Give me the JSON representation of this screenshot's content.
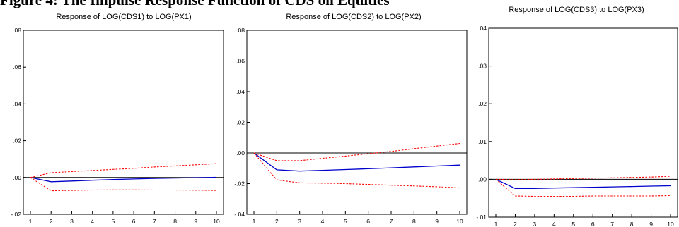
{
  "heading": "Figure 4: The Impulse Response Function of CDS on Equities",
  "chart_data": [
    {
      "type": "line",
      "title": "Response of LOG(CDS1) to LOG(PX1)",
      "x": [
        1,
        2,
        3,
        4,
        5,
        6,
        7,
        8,
        9,
        10
      ],
      "ylim": [
        -0.02,
        0.08
      ],
      "yticks": [
        "-.02",
        ".00",
        ".02",
        ".04",
        ".06",
        ".08"
      ],
      "ytick_values": [
        -0.02,
        0.0,
        0.02,
        0.04,
        0.06,
        0.08
      ],
      "series": [
        {
          "values": [
            0.0,
            -0.0023,
            -0.0019,
            -0.0015,
            -0.0011,
            -0.0008,
            -0.0005,
            -0.0003,
            -0.0001,
            0.0001
          ],
          "color": "#0000cc",
          "style": "solid"
        },
        {
          "values": [
            0.0,
            0.0026,
            0.0032,
            0.0038,
            0.0044,
            0.005,
            0.0057,
            0.0063,
            0.0069,
            0.0075
          ],
          "color": "#ff0000",
          "style": "dashed"
        },
        {
          "values": [
            0.0,
            -0.0072,
            -0.007,
            -0.0068,
            -0.0067,
            -0.0067,
            -0.0068,
            -0.0068,
            -0.0069,
            -0.007
          ],
          "color": "#ff0000",
          "style": "dashed"
        }
      ]
    },
    {
      "type": "line",
      "title": "Response of LOG(CDS2) to LOG(PX2)",
      "x": [
        1,
        2,
        3,
        4,
        5,
        6,
        7,
        8,
        9,
        10
      ],
      "ylim": [
        -0.04,
        0.08
      ],
      "yticks": [
        "-.04",
        "-.02",
        ".00",
        ".02",
        ".04",
        ".06",
        ".08"
      ],
      "ytick_values": [
        -0.04,
        -0.02,
        0.0,
        0.02,
        0.04,
        0.06,
        0.08
      ],
      "series": [
        {
          "values": [
            0.0,
            -0.011,
            -0.0118,
            -0.0113,
            -0.0108,
            -0.0103,
            -0.0097,
            -0.0091,
            -0.0085,
            -0.0079
          ],
          "color": "#0000cc",
          "style": "solid"
        },
        {
          "values": [
            0.0,
            -0.005,
            -0.005,
            -0.0035,
            -0.002,
            -0.0005,
            0.001,
            0.0028,
            0.0045,
            0.0062
          ],
          "color": "#ff0000",
          "style": "dashed"
        },
        {
          "values": [
            0.0,
            -0.0175,
            -0.0195,
            -0.0197,
            -0.02,
            -0.0205,
            -0.021,
            -0.0215,
            -0.022,
            -0.0228
          ],
          "color": "#ff0000",
          "style": "dashed"
        }
      ]
    },
    {
      "type": "line",
      "title": "Response of LOG(CDS3) to LOG(PX3)",
      "x": [
        1,
        2,
        3,
        4,
        5,
        6,
        7,
        8,
        9,
        10
      ],
      "ylim": [
        -0.01,
        0.04
      ],
      "yticks": [
        "-.01",
        ".00",
        ".01",
        ".02",
        ".03",
        ".04"
      ],
      "ytick_values": [
        -0.01,
        0.0,
        0.01,
        0.02,
        0.03,
        0.04
      ],
      "series": [
        {
          "values": [
            0.0,
            -0.0024,
            -0.0024,
            -0.0023,
            -0.0022,
            -0.0021,
            -0.002,
            -0.0019,
            -0.0018,
            -0.0017
          ],
          "color": "#0000cc",
          "style": "solid"
        },
        {
          "values": [
            0.0,
            -0.0001,
            0.0,
            0.0001,
            0.0002,
            0.0003,
            0.0004,
            0.0005,
            0.0006,
            0.0008
          ],
          "color": "#ff0000",
          "style": "dashed"
        },
        {
          "values": [
            0.0,
            -0.0044,
            -0.0045,
            -0.0045,
            -0.0045,
            -0.0044,
            -0.0044,
            -0.0044,
            -0.0044,
            -0.0043
          ],
          "color": "#ff0000",
          "style": "dashed"
        }
      ]
    }
  ]
}
